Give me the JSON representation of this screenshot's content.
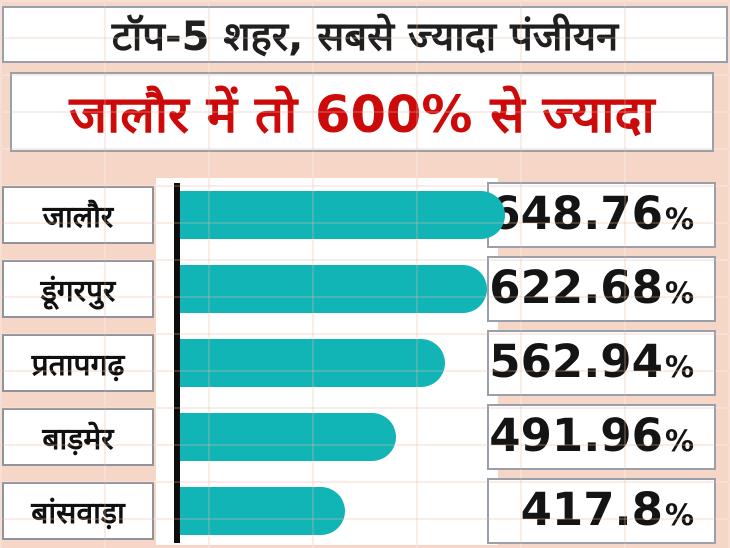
{
  "chart_data": {
    "type": "bar",
    "orientation": "horizontal",
    "title": "टॉप-5 शहर, सबसे ज्यादा पंजीयन",
    "subtitle": "जालौर में तो 600% से ज्यादा",
    "categories": [
      "जालौर",
      "डूंगरपुर",
      "प्रतापगढ़",
      "बाड़मेर",
      "बांसवाड़ा"
    ],
    "values": [
      648.76,
      622.68,
      562.94,
      491.96,
      417.8
    ],
    "value_labels": [
      "648.76",
      "622.68",
      "562.94",
      "491.96",
      "417.8"
    ],
    "unit": "%",
    "legend": "none",
    "grid": "faint spreadsheet gridlines",
    "bar_color": "#12b5b5",
    "value_color": "#141414",
    "title_color": "#1f1f1f",
    "subtitle_color": "#cd0a0a",
    "background_color": "#f6d7c7"
  }
}
